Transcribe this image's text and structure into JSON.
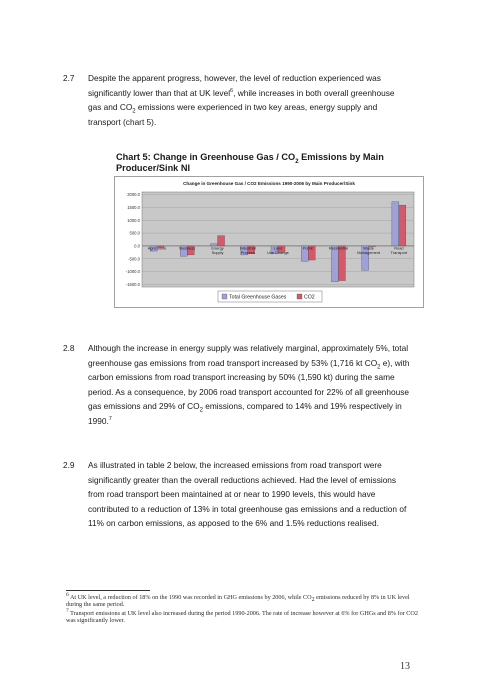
{
  "sections": {
    "s27": {
      "number": "2.7",
      "text_a": "Despite the apparent progress, however, the level of reduction experienced was significantly lower than that at UK level",
      "sup_a": "6",
      "text_b": ", while increases in both overall greenhouse gas and CO",
      "sub_b": "2",
      "text_c": " emissions were experienced in two key areas, energy supply and transport (chart 5)."
    },
    "s28": {
      "number": "2.8",
      "text_a": "Although the increase in energy supply was relatively marginal, approximately 5%, total greenhouse gas emissions from road transport increased by 53% (1,716 kt CO",
      "sub_a": "2",
      "text_b": " e), with carbon emissions from road transport increasing by 50% (1,590 kt) during the same period. As a consequence, by 2006 road transport accounted for 22% of all greenhouse gas emissions and 29% of CO",
      "sub_b": "2",
      "text_c": " emissions, compared to 14% and 19% respectively in 1990.",
      "sup_c": "7"
    },
    "s29": {
      "number": "2.9",
      "text": "As illustrated in table 2 below, the increased emissions from road transport were significantly greater than the overall reductions achieved. Had the level of emissions from road transport been maintained at or near to 1990 levels, this would have contributed to a reduction of 13% in total greenhouse gas emissions and a reduction of 11% on carbon emissions, as apposed to the 6% and 1.5% reductions realised."
    }
  },
  "chart_caption": {
    "prefix": "Chart 5: Change in Greenhouse Gas / CO",
    "sub": "2",
    "suffix": " Emissions by Main Producer/Sink NI"
  },
  "chart_data": {
    "type": "bar",
    "title": "Change in Greenhouse Gas / CO2 Emissions 1990-2006 by Main Producer/Sink",
    "categories": [
      "Agriculture",
      "Business",
      "Energy Supply",
      "Industrial Process",
      "Land Use Change",
      "Public",
      "Residential",
      "Waste Management",
      "Road Transport"
    ],
    "series": [
      {
        "name": "Total Greenhouse Gases",
        "color": "#9fa0d6",
        "values": [
          -200,
          -400,
          80,
          -350,
          -300,
          -600,
          -1400,
          -950,
          1716
        ]
      },
      {
        "name": "CO2",
        "color": "#d35a6a",
        "values": [
          -50,
          -350,
          400,
          -300,
          -250,
          -550,
          -1350,
          -20,
          1590
        ]
      }
    ],
    "yticks": [
      2000,
      1500,
      1000,
      500,
      0,
      -500,
      -1000,
      -1500
    ],
    "ylim": [
      -1600,
      2100
    ],
    "grid": true,
    "legend": "bottom",
    "colors": {
      "total": "#9fa0d6",
      "co2": "#d35a6a",
      "plot_bg": "#c8c8c8"
    }
  },
  "footnotes": {
    "f6": {
      "mark": "6",
      "text_a": " At UK level, a reduction of 18% on the 1990 was recorded in GHG emissions by 2006, while CO",
      "sub_a": "2",
      "text_b": " emissions reduced by 8% in UK level during the same period."
    },
    "f7": {
      "mark": "7",
      "text": " Transport emissions at UK level also increased during the period 1990-2006. The rate of increase however at 6% for GHGs and 8% for CO2 was significantly lower."
    }
  },
  "page_number": "13"
}
